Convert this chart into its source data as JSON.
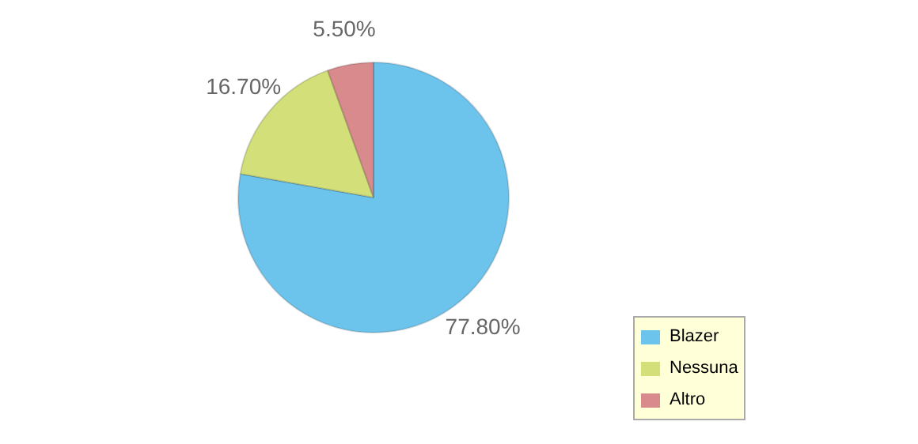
{
  "chart_data": {
    "type": "pie",
    "categories": [
      "Blazer",
      "Nessuna",
      "Altro"
    ],
    "values": [
      77.8,
      16.7,
      5.5
    ],
    "value_labels": [
      "77.80%",
      "16.70%",
      "5.50%"
    ],
    "colors": [
      "#6cc3ec",
      "#d3e07a",
      "#d98a8c"
    ],
    "legend": "bottom right"
  }
}
